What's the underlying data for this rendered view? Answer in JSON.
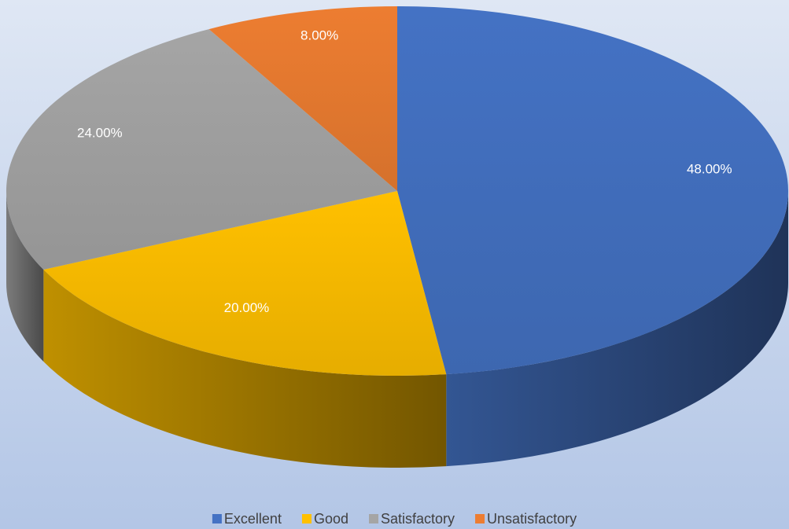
{
  "chart_data": {
    "type": "pie3d",
    "categories": [
      "Excellent",
      "Good",
      "Satisfactory",
      "Unsatisfactory"
    ],
    "values": [
      48,
      20,
      24,
      8
    ],
    "value_labels": [
      "48.00%",
      "20.00%",
      "24.00%",
      "8.00%"
    ],
    "colors": [
      "#4472c4",
      "#ffc000",
      "#a5a5a5",
      "#ed7d31"
    ],
    "legend": "bottom"
  }
}
